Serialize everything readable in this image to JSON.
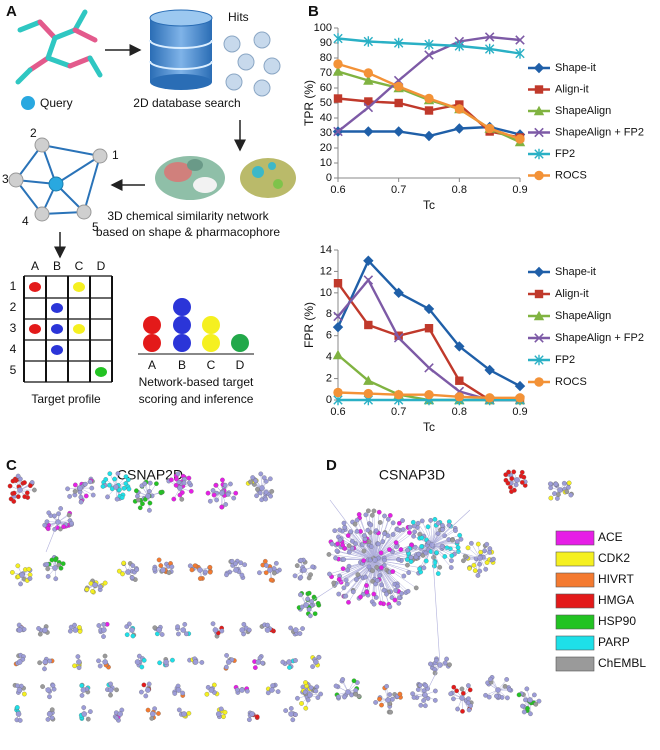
{
  "panel_labels": [
    "A",
    "B",
    "C",
    "D"
  ],
  "workflow": {
    "hits": "Hits",
    "query": "Query",
    "search": "2D database search",
    "network_caption": [
      "3D chemical similarity network",
      "based on shape & pharmacophore"
    ],
    "node_labels": [
      "1",
      "2",
      "3",
      "4",
      "5"
    ],
    "profile": {
      "columns": [
        "A",
        "B",
        "C",
        "D"
      ],
      "rows": [
        "1",
        "2",
        "3",
        "4",
        "5"
      ],
      "title": "Target profile"
    },
    "scoring": {
      "labels": [
        "A",
        "B",
        "C",
        "D"
      ],
      "caption": [
        "Network-based target",
        "scoring and inference"
      ]
    }
  },
  "networks": [
    {
      "title": "CSNAP2D"
    },
    {
      "title": "CSNAP3D"
    }
  ],
  "legend": [
    {
      "name": "ACE",
      "color": "#e61ee6"
    },
    {
      "name": "CDK2",
      "color": "#f5f020"
    },
    {
      "name": "HIVRT",
      "color": "#f47a30"
    },
    {
      "name": "HMGA",
      "color": "#e31a1a"
    },
    {
      "name": "HSP90",
      "color": "#22c322"
    },
    {
      "name": "PARP",
      "color": "#1ee0e8"
    },
    {
      "name": "ChEMBL",
      "color": "#9a9a9a"
    }
  ],
  "chart_data": [
    {
      "type": "line",
      "ylabel": "TPR (%)",
      "xlabel": "Tc",
      "x": [
        0.6,
        0.65,
        0.7,
        0.75,
        0.8,
        0.85,
        0.9
      ],
      "xlim": [
        0.6,
        0.9
      ],
      "xticks": [
        0.6,
        0.7,
        0.8,
        0.9
      ],
      "ylim": [
        0,
        100
      ],
      "yticks": [
        0,
        10,
        20,
        30,
        40,
        50,
        60,
        70,
        80,
        90,
        100
      ],
      "grid": false,
      "legend": "right",
      "series": [
        {
          "name": "Shape-it",
          "color": "#1f5fa8",
          "marker": "diamond",
          "values": [
            31,
            31,
            31,
            28,
            33,
            34,
            29
          ]
        },
        {
          "name": "Align-it",
          "color": "#c0392b",
          "marker": "square",
          "values": [
            53,
            51,
            50,
            45,
            49,
            31,
            27
          ]
        },
        {
          "name": "ShapeAlign",
          "color": "#80b341",
          "marker": "triangle",
          "values": [
            71,
            65,
            60,
            52,
            46,
            33,
            24
          ]
        },
        {
          "name": "ShapeAlign + FP2",
          "color": "#7d5aa6",
          "marker": "x",
          "values": [
            31,
            47,
            65,
            82,
            91,
            94,
            92
          ]
        },
        {
          "name": "FP2",
          "color": "#2ab0c5",
          "marker": "star",
          "values": [
            93,
            91,
            90,
            89,
            88,
            86,
            83
          ]
        },
        {
          "name": "ROCS",
          "color": "#f39237",
          "marker": "circle",
          "values": [
            76,
            70,
            61,
            53,
            46,
            33,
            26
          ]
        }
      ]
    },
    {
      "type": "line",
      "ylabel": "FPR (%)",
      "xlabel": "Tc",
      "x": [
        0.6,
        0.65,
        0.7,
        0.75,
        0.8,
        0.85,
        0.9
      ],
      "xlim": [
        0.6,
        0.9
      ],
      "xticks": [
        0.6,
        0.7,
        0.8,
        0.9
      ],
      "ylim": [
        0,
        14
      ],
      "yticks": [
        0,
        2,
        4,
        6,
        8,
        10,
        12,
        14
      ],
      "grid": false,
      "legend": "right",
      "series": [
        {
          "name": "Shape-it",
          "color": "#1f5fa8",
          "marker": "diamond",
          "values": [
            6.8,
            13,
            10,
            8.5,
            5,
            2.8,
            1.3
          ]
        },
        {
          "name": "Align-it",
          "color": "#c0392b",
          "marker": "square",
          "values": [
            10.9,
            7,
            6,
            6.7,
            1.8,
            0,
            0
          ]
        },
        {
          "name": "ShapeAlign",
          "color": "#80b341",
          "marker": "triangle",
          "values": [
            4.2,
            1.8,
            0.5,
            0,
            0,
            0,
            0
          ]
        },
        {
          "name": "ShapeAlign + FP2",
          "color": "#7d5aa6",
          "marker": "x",
          "values": [
            7.8,
            11.2,
            5.8,
            3,
            0.8,
            0,
            0
          ]
        },
        {
          "name": "FP2",
          "color": "#2ab0c5",
          "marker": "star",
          "values": [
            0,
            0,
            0,
            0,
            0,
            0,
            0
          ]
        },
        {
          "name": "ROCS",
          "color": "#f39237",
          "marker": "circle",
          "values": [
            0.7,
            0.6,
            0.5,
            0.5,
            0.3,
            0.2,
            0.2
          ]
        }
      ]
    }
  ]
}
